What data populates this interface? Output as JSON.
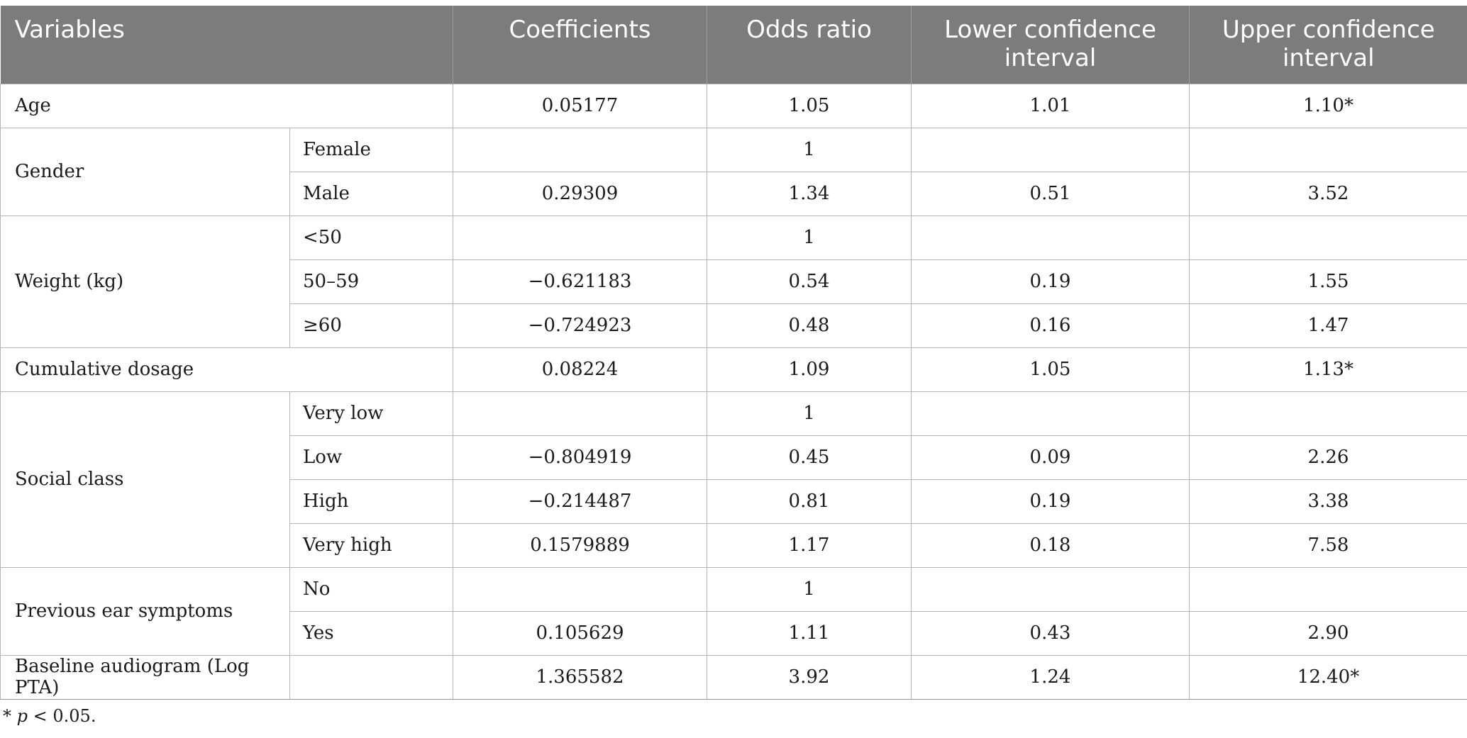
{
  "table": {
    "headers": [
      "Variables",
      "Coefficients",
      "Odds ratio",
      "Lower confidence interval",
      "Upper confidence interval"
    ],
    "rows": {
      "age": {
        "label": "Age",
        "coef": "0.05177",
        "or": "1.05",
        "lower": "1.01",
        "upper": "1.10*"
      },
      "gender": {
        "label": "Gender",
        "female": {
          "label": "Female",
          "coef": "",
          "or": "1",
          "lower": "",
          "upper": ""
        },
        "male": {
          "label": "Male",
          "coef": "0.29309",
          "or": "1.34",
          "lower": "0.51",
          "upper": "3.52"
        }
      },
      "weight": {
        "label": "Weight (kg)",
        "lt50": {
          "label": "<50",
          "coef": "",
          "or": "1",
          "lower": "",
          "upper": ""
        },
        "w50_59": {
          "label": "50–59",
          "coef": "−0.621183",
          "or": "0.54",
          "lower": "0.19",
          "upper": "1.55"
        },
        "ge60": {
          "label": "≥60",
          "coef": "−0.724923",
          "or": "0.48",
          "lower": "0.16",
          "upper": "1.47"
        }
      },
      "cumulative": {
        "label": "Cumulative dosage",
        "coef": "0.08224",
        "or": "1.09",
        "lower": "1.05",
        "upper": "1.13*"
      },
      "social": {
        "label": "Social class",
        "very_low": {
          "label": "Very low",
          "coef": "",
          "or": "1",
          "lower": "",
          "upper": ""
        },
        "low": {
          "label": "Low",
          "coef": "−0.804919",
          "or": "0.45",
          "lower": "0.09",
          "upper": "2.26"
        },
        "high": {
          "label": "High",
          "coef": "−0.214487",
          "or": "0.81",
          "lower": "0.19",
          "upper": "3.38"
        },
        "very_high": {
          "label": "Very high",
          "coef": "0.1579889",
          "or": "1.17",
          "lower": "0.18",
          "upper": "7.58"
        }
      },
      "ear": {
        "label": "Previous ear symptoms",
        "no": {
          "label": "No",
          "coef": "",
          "or": "1",
          "lower": "",
          "upper": ""
        },
        "yes": {
          "label": "Yes",
          "coef": "0.105629",
          "or": "1.11",
          "lower": "0.43",
          "upper": "2.90"
        }
      },
      "baseline": {
        "label": "Baseline audiogram (Log PTA)",
        "coef": "1.365582",
        "or": "3.92",
        "lower": "1.24",
        "upper": "12.40*"
      }
    }
  },
  "footnote": {
    "star": "* ",
    "p": "p",
    "text": " < 0.05."
  },
  "colors": {
    "header_bg": "#7b7c7b",
    "header_text": "#ffffff",
    "border": "#b5b5b5"
  }
}
